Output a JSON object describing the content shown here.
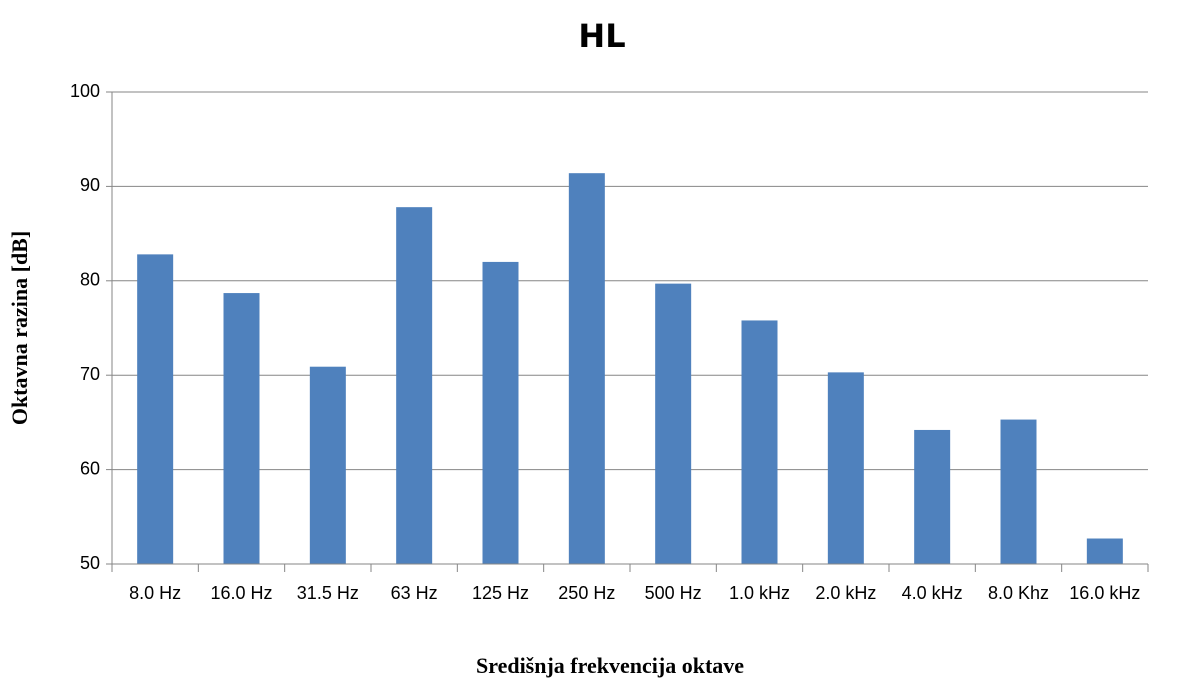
{
  "chart_data": {
    "type": "bar",
    "title": "HL",
    "x_label": "Središnja frekvencija oktave",
    "y_label": "Oktavna razina [dB]",
    "categories": [
      "8.0 Hz",
      "16.0 Hz",
      "31.5 Hz",
      "63 Hz",
      "125 Hz",
      "250 Hz",
      "500 Hz",
      "1.0 kHz",
      "2.0 kHz",
      "4.0 kHz",
      "8.0 Khz",
      "16.0 kHz"
    ],
    "values": [
      82.8,
      78.7,
      70.9,
      87.8,
      82.0,
      91.4,
      79.7,
      75.8,
      70.3,
      64.2,
      65.3,
      52.7
    ],
    "color": "#4f81bd",
    "ylim": [
      50,
      100
    ],
    "yticks": [
      50,
      60,
      70,
      80,
      90,
      100
    ],
    "grid": true
  }
}
